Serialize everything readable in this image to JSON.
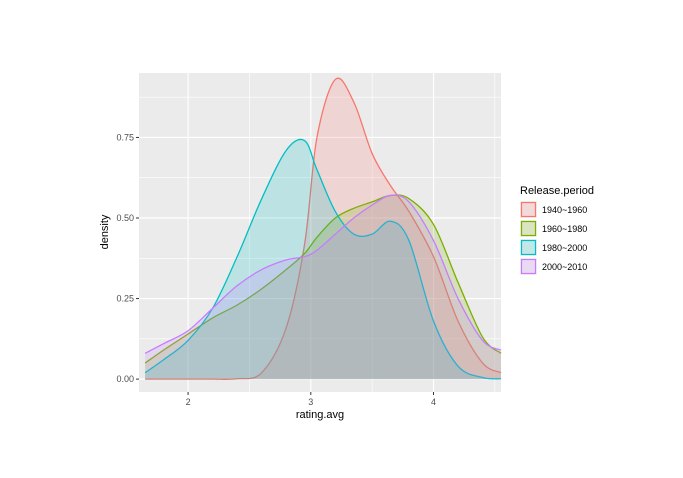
{
  "chart_data": {
    "type": "area",
    "xlabel": "rating.avg",
    "ylabel": "density",
    "xlim": [
      1.6,
      4.55
    ],
    "ylim": [
      -0.04,
      0.95
    ],
    "x_ticks": [
      2,
      3,
      4
    ],
    "x_tick_labels": [
      "2",
      "3",
      "4"
    ],
    "y_ticks": [
      0,
      0.25,
      0.5,
      0.75
    ],
    "y_tick_labels": [
      "0.00",
      "0.25",
      "0.50",
      "0.75"
    ],
    "grid": true,
    "legend_position": "right",
    "legend_title": "Release.period",
    "x": [
      1.65,
      1.8,
      2.0,
      2.2,
      2.4,
      2.6,
      2.8,
      2.95,
      3.05,
      3.2,
      3.35,
      3.5,
      3.65,
      3.8,
      4.0,
      4.2,
      4.4,
      4.55
    ],
    "series": [
      {
        "name": "1940~1960",
        "color": "#F8766D",
        "values": [
          0.0,
          0.0,
          0.0,
          0.0,
          0.001,
          0.02,
          0.16,
          0.42,
          0.75,
          0.93,
          0.86,
          0.7,
          0.6,
          0.52,
          0.38,
          0.18,
          0.05,
          0.02
        ]
      },
      {
        "name": "1960~1980",
        "color": "#7CAE00",
        "values": [
          0.05,
          0.09,
          0.14,
          0.19,
          0.23,
          0.28,
          0.34,
          0.39,
          0.44,
          0.5,
          0.53,
          0.55,
          0.57,
          0.56,
          0.48,
          0.3,
          0.13,
          0.08
        ]
      },
      {
        "name": "1980~2000",
        "color": "#00BFC4",
        "values": [
          0.02,
          0.06,
          0.12,
          0.22,
          0.38,
          0.56,
          0.71,
          0.74,
          0.65,
          0.52,
          0.45,
          0.45,
          0.49,
          0.43,
          0.18,
          0.04,
          0.005,
          0.001
        ]
      },
      {
        "name": "2000~2010",
        "color": "#C77CFF",
        "values": [
          0.08,
          0.11,
          0.15,
          0.22,
          0.29,
          0.34,
          0.37,
          0.38,
          0.4,
          0.45,
          0.5,
          0.54,
          0.57,
          0.55,
          0.43,
          0.25,
          0.12,
          0.09
        ]
      }
    ]
  }
}
